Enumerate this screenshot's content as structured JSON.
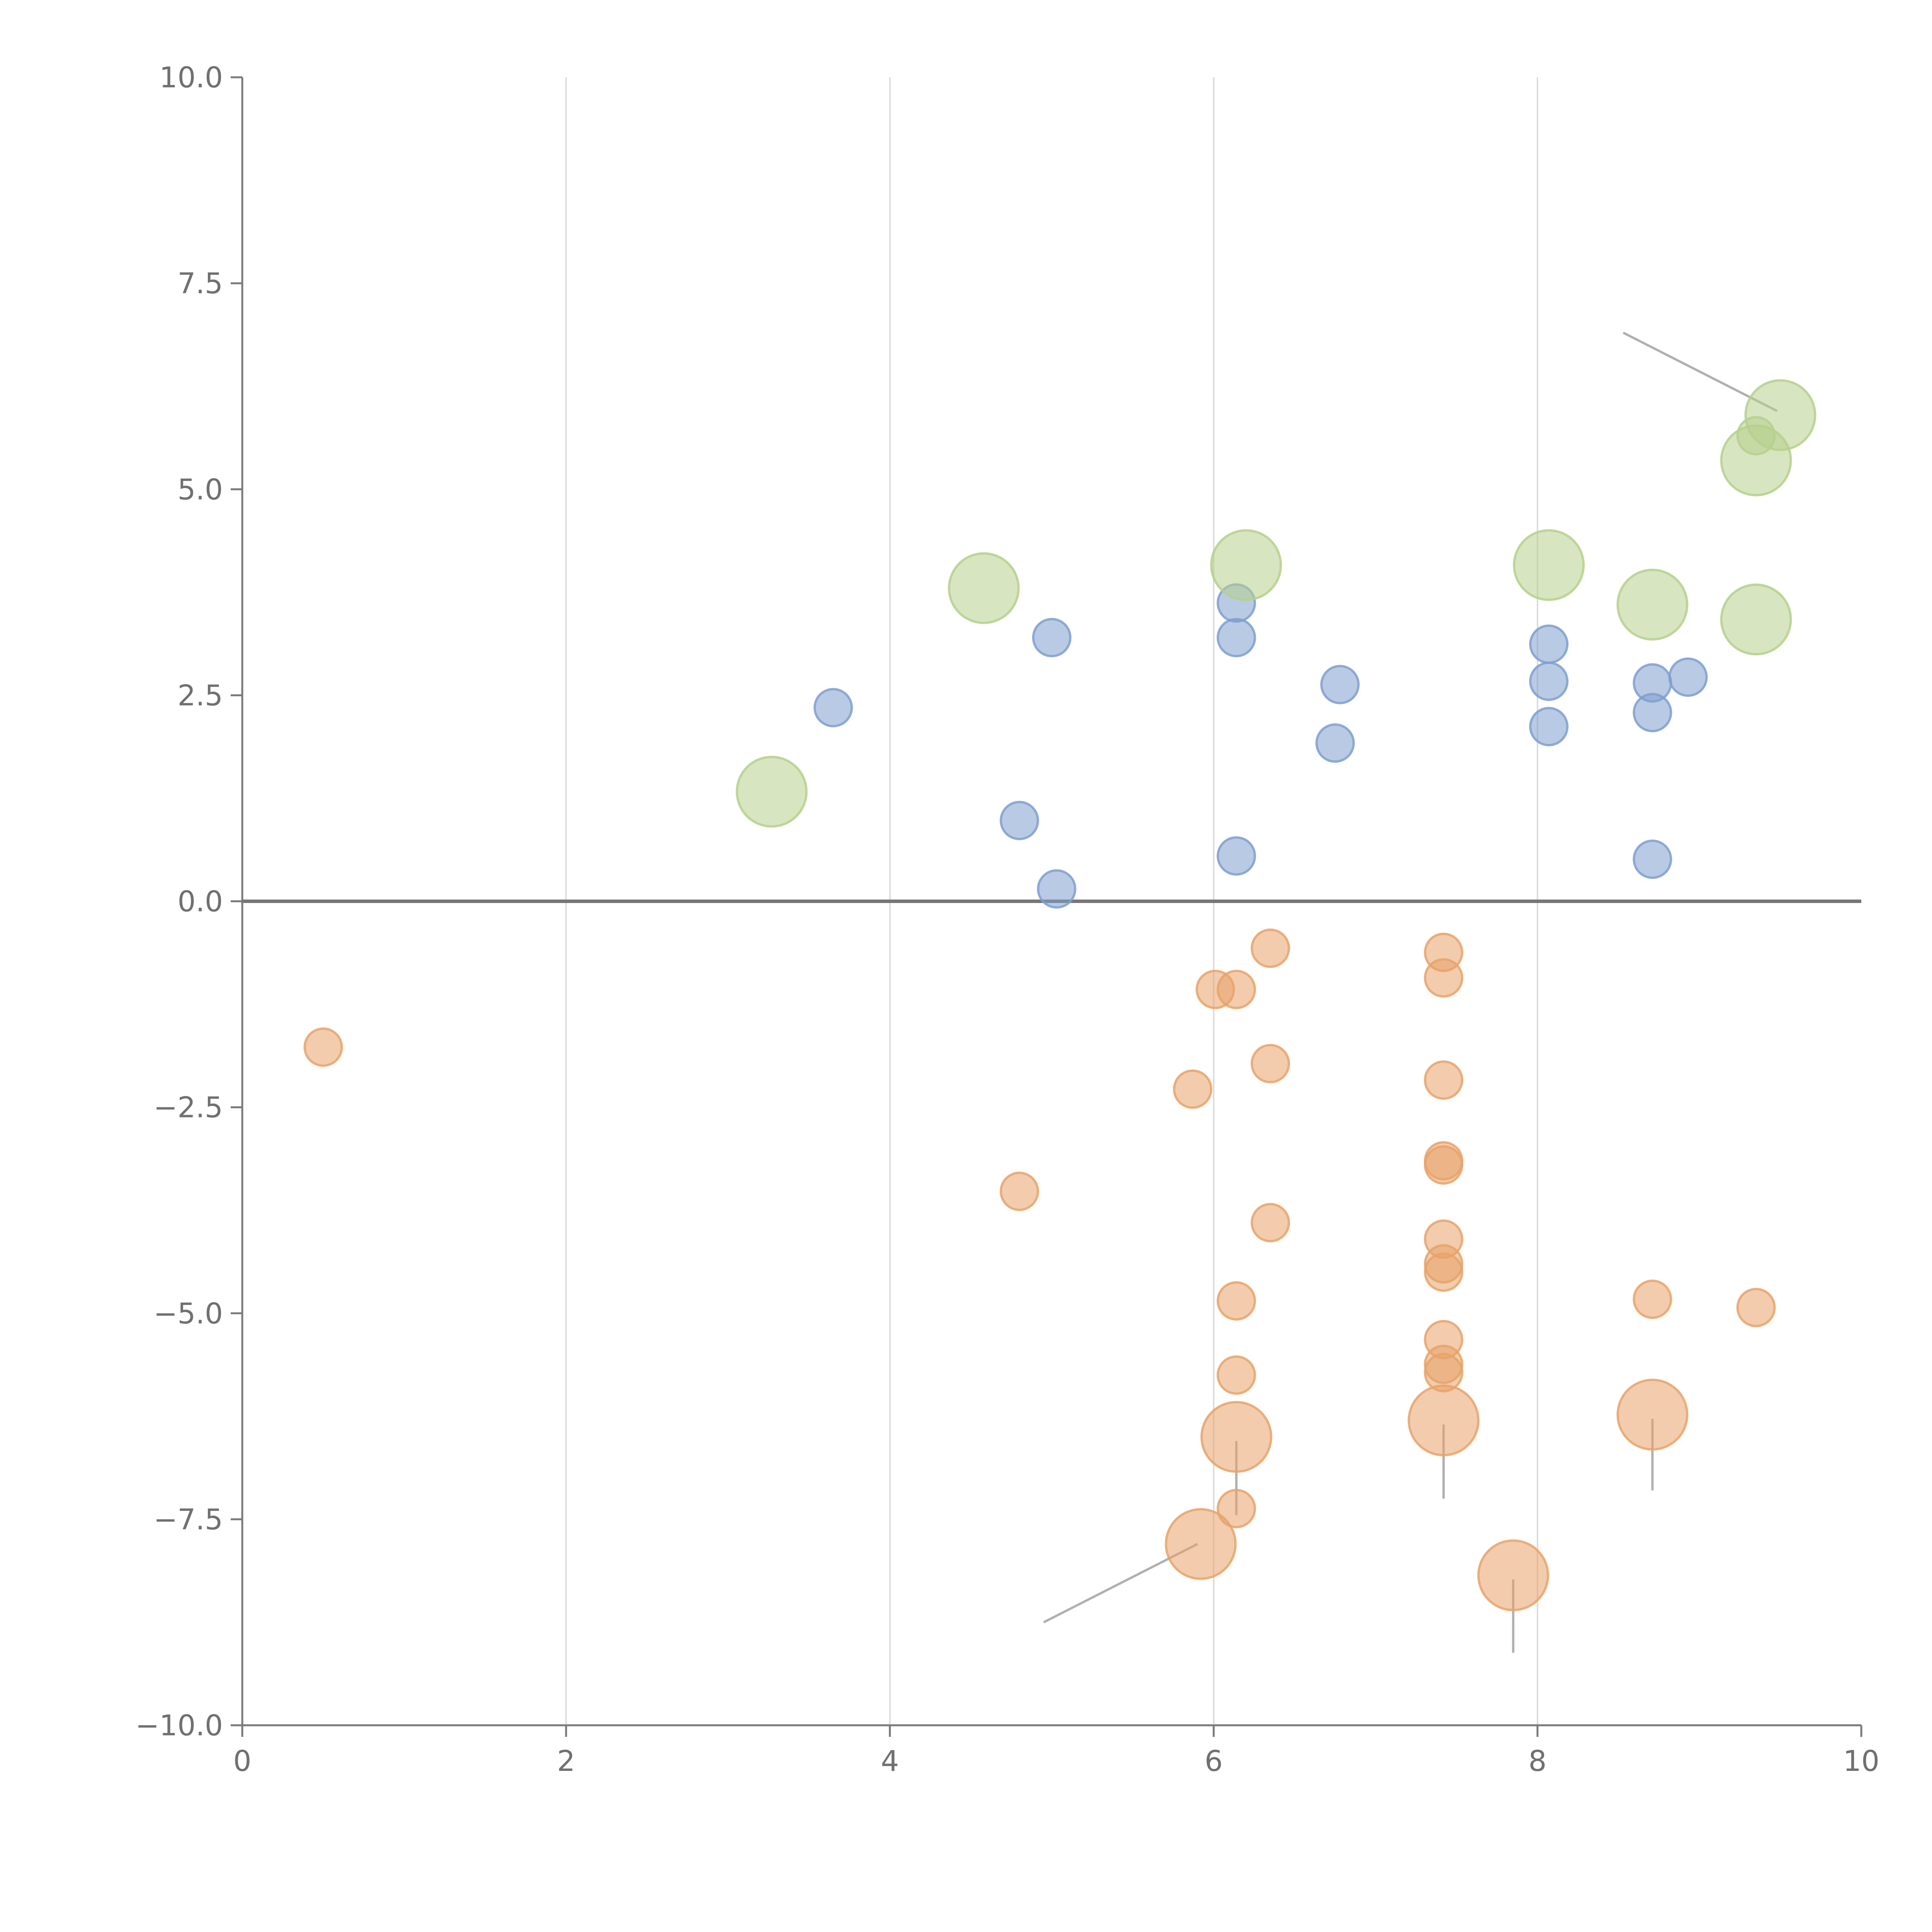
{
  "chart_data": {
    "type": "scatter",
    "title": "",
    "xlabel": "",
    "ylabel": "",
    "xlim": [
      0,
      10
    ],
    "ylim": [
      -10,
      10
    ],
    "x_ticks": [
      0,
      2,
      4,
      6,
      8,
      10
    ],
    "y_ticks": [
      10,
      7.5,
      5,
      2.5,
      0,
      -2.5,
      -5,
      -7.5,
      -10
    ],
    "x_tick_labels": [
      "0",
      "2",
      "4",
      "6",
      "8",
      "10"
    ],
    "y_tick_labels": [
      "10.0",
      "7.5",
      "5.0",
      "2.5",
      "0.0",
      "−2.5",
      "−5.0",
      "−7.5",
      "−10.0"
    ],
    "grid": "vertical",
    "zero_line": true,
    "legend": "none",
    "colors": {
      "blue": "#7f9fcf",
      "orange": "#e8a36a",
      "green": "#b6d08c",
      "axis": "#7a7a7a",
      "grid": "#dcdcdc",
      "leader": "#b0b0b0"
    },
    "size_scale": {
      "small": 1,
      "large": 2
    },
    "series": [
      {
        "name": "blue",
        "color": "#7f9fcf",
        "size": "small",
        "points": [
          {
            "x": 3.65,
            "y": 2.35
          },
          {
            "x": 5.0,
            "y": 3.2
          },
          {
            "x": 4.8,
            "y": 0.98
          },
          {
            "x": 5.03,
            "y": 0.15
          },
          {
            "x": 6.14,
            "y": 3.62
          },
          {
            "x": 6.14,
            "y": 3.2
          },
          {
            "x": 6.14,
            "y": 0.55
          },
          {
            "x": 6.78,
            "y": 2.63
          },
          {
            "x": 6.75,
            "y": 1.92
          },
          {
            "x": 8.07,
            "y": 3.12
          },
          {
            "x": 8.07,
            "y": 2.67
          },
          {
            "x": 8.07,
            "y": 2.12
          },
          {
            "x": 8.71,
            "y": 2.65
          },
          {
            "x": 8.71,
            "y": 2.29
          },
          {
            "x": 8.93,
            "y": 2.72
          },
          {
            "x": 8.71,
            "y": 0.51
          }
        ]
      },
      {
        "name": "orange",
        "color": "#e8a36a",
        "size": "small",
        "points": [
          {
            "x": 0.5,
            "y": -1.77
          },
          {
            "x": 4.8,
            "y": -3.52
          },
          {
            "x": 5.87,
            "y": -2.28
          },
          {
            "x": 6.01,
            "y": -1.07
          },
          {
            "x": 6.14,
            "y": -1.07
          },
          {
            "x": 6.35,
            "y": -0.57
          },
          {
            "x": 6.35,
            "y": -1.97
          },
          {
            "x": 6.35,
            "y": -3.9
          },
          {
            "x": 6.14,
            "y": -4.85
          },
          {
            "x": 6.14,
            "y": -5.75
          },
          {
            "x": 6.14,
            "y": -7.37
          },
          {
            "x": 7.42,
            "y": -0.62
          },
          {
            "x": 7.42,
            "y": -0.93
          },
          {
            "x": 7.42,
            "y": -2.17
          },
          {
            "x": 7.42,
            "y": -3.15
          },
          {
            "x": 7.42,
            "y": -3.2
          },
          {
            "x": 7.42,
            "y": -4.1
          },
          {
            "x": 7.42,
            "y": -4.4
          },
          {
            "x": 7.42,
            "y": -4.5
          },
          {
            "x": 7.42,
            "y": -5.32
          },
          {
            "x": 7.42,
            "y": -5.62
          },
          {
            "x": 7.42,
            "y": -5.72
          },
          {
            "x": 8.71,
            "y": -4.83
          },
          {
            "x": 9.35,
            "y": -4.93
          }
        ]
      },
      {
        "name": "orange-large",
        "color": "#e8a36a",
        "size": "large",
        "points": [
          {
            "x": 6.14,
            "y": -6.5
          },
          {
            "x": 7.42,
            "y": -6.3
          },
          {
            "x": 8.71,
            "y": -6.23
          },
          {
            "x": 5.92,
            "y": -7.8
          },
          {
            "x": 7.85,
            "y": -8.18
          }
        ]
      },
      {
        "name": "green",
        "color": "#b6d08c",
        "size": "large",
        "points": [
          {
            "x": 3.27,
            "y": 1.33
          },
          {
            "x": 4.58,
            "y": 3.8
          },
          {
            "x": 6.2,
            "y": 4.08
          },
          {
            "x": 8.07,
            "y": 4.08
          },
          {
            "x": 8.71,
            "y": 3.6
          },
          {
            "x": 9.35,
            "y": 3.42
          },
          {
            "x": 9.35,
            "y": 5.35
          },
          {
            "x": 9.5,
            "y": 5.9
          }
        ]
      },
      {
        "name": "green-small",
        "color": "#b6d08c",
        "size": "small",
        "points": [
          {
            "x": 9.35,
            "y": 5.65
          }
        ]
      }
    ],
    "annotation_lines": [
      {
        "x1": 8.53,
        "y1": 6.9,
        "x2": 9.48,
        "y2": 5.95,
        "color": "leader"
      },
      {
        "x1": 4.95,
        "y1": -8.75,
        "x2": 5.9,
        "y2": -7.8,
        "color": "leader"
      },
      {
        "x1": 6.14,
        "y1": -6.55,
        "x2": 6.14,
        "y2": -7.45,
        "color": "leader"
      },
      {
        "x1": 7.42,
        "y1": -6.35,
        "x2": 7.42,
        "y2": -7.25,
        "color": "leader"
      },
      {
        "x1": 8.71,
        "y1": -6.28,
        "x2": 8.71,
        "y2": -7.15,
        "color": "leader"
      },
      {
        "x1": 7.85,
        "y1": -8.23,
        "x2": 7.85,
        "y2": -9.12,
        "color": "leader"
      },
      {
        "x1": 4.6,
        "y1": 3.85,
        "x2": 4.78,
        "y2": 4.12,
        "color": "white"
      },
      {
        "x1": 6.22,
        "y1": 4.13,
        "x2": 6.35,
        "y2": 4.38,
        "color": "white"
      },
      {
        "x1": 8.73,
        "y1": 3.65,
        "x2": 8.92,
        "y2": 3.77,
        "color": "white"
      },
      {
        "x1": 9.33,
        "y1": 3.0,
        "x2": 9.36,
        "y2": 3.35,
        "color": "white"
      }
    ]
  }
}
